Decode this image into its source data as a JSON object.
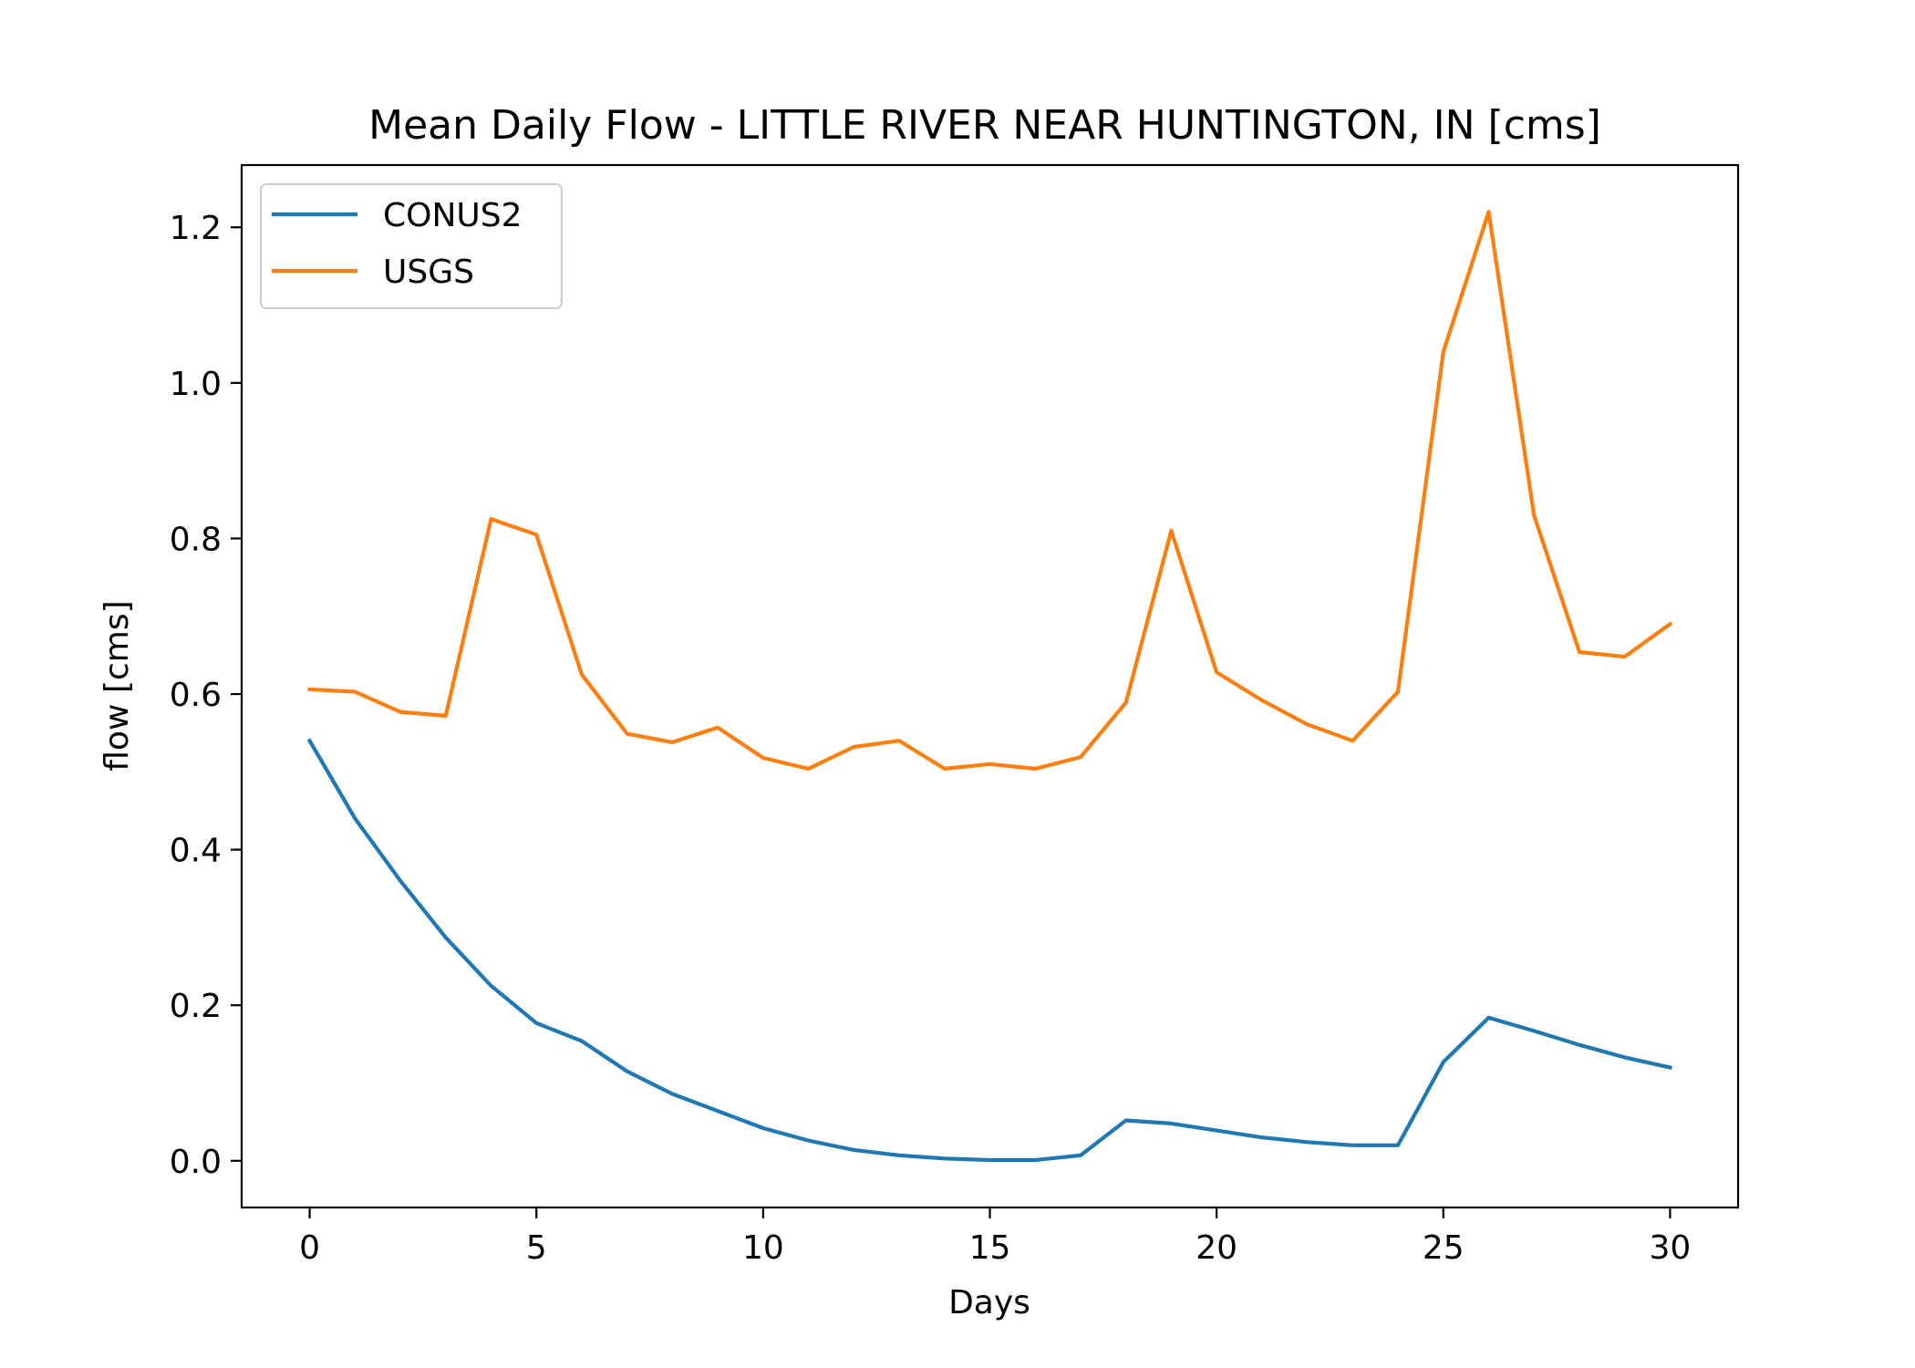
{
  "chart_data": {
    "type": "line",
    "title": "Mean Daily Flow - LITTLE RIVER NEAR HUNTINGTON, IN [cms]",
    "xlabel": "Days",
    "ylabel": "flow [cms]",
    "xlim": [
      -1.5,
      31.5
    ],
    "ylim": [
      -0.06,
      1.28
    ],
    "x_ticks": [
      0,
      5,
      10,
      15,
      20,
      25,
      30
    ],
    "x_tick_labels": [
      "0",
      "5",
      "10",
      "15",
      "20",
      "25",
      "30"
    ],
    "y_ticks": [
      0.0,
      0.2,
      0.4,
      0.6,
      0.8,
      1.0,
      1.2
    ],
    "y_tick_labels": [
      "0.0",
      "0.2",
      "0.4",
      "0.6",
      "0.8",
      "1.0",
      "1.2"
    ],
    "grid": false,
    "legend_position": "top-left",
    "x": [
      0,
      1,
      2,
      3,
      4,
      5,
      6,
      7,
      8,
      9,
      10,
      11,
      12,
      13,
      14,
      15,
      16,
      17,
      18,
      19,
      20,
      21,
      22,
      23,
      24,
      25,
      26,
      27,
      28,
      29,
      30
    ],
    "series": [
      {
        "name": "CONUS2",
        "color": "#1f77b4",
        "values": [
          0.54,
          0.44,
          0.36,
          0.287,
          0.225,
          0.177,
          0.154,
          0.115,
          0.086,
          0.064,
          0.042,
          0.026,
          0.014,
          0.007,
          0.003,
          0.001,
          0.001,
          0.007,
          0.052,
          0.048,
          0.039,
          0.03,
          0.024,
          0.02,
          0.02,
          0.127,
          0.184,
          0.167,
          0.149,
          0.133,
          0.12
        ]
      },
      {
        "name": "USGS",
        "color": "#ff7f0e",
        "values": [
          0.606,
          0.603,
          0.577,
          0.572,
          0.825,
          0.805,
          0.625,
          0.549,
          0.538,
          0.557,
          0.518,
          0.504,
          0.532,
          0.54,
          0.504,
          0.51,
          0.504,
          0.519,
          0.589,
          0.81,
          0.628,
          0.592,
          0.561,
          0.54,
          0.603,
          1.04,
          1.22,
          0.83,
          0.654,
          0.648,
          0.69
        ]
      }
    ]
  }
}
